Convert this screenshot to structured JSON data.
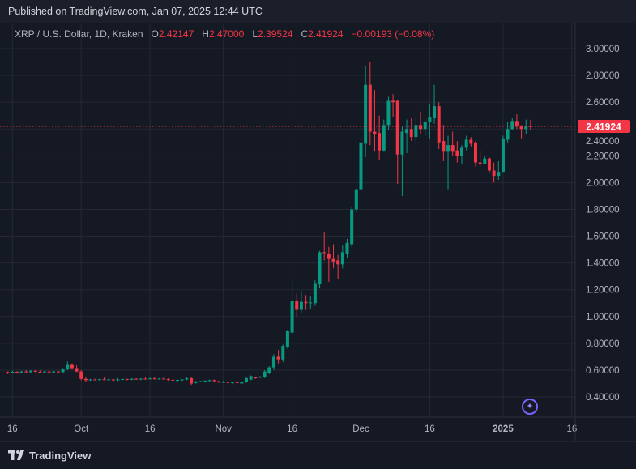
{
  "header": {
    "published": "Published on TradingView.com, Jan 07, 2025 12:44 UTC"
  },
  "legend": {
    "symbol": "XRP / U.S. Dollar, 1D, Kraken",
    "o_label": "O",
    "o": "2.42147",
    "h_label": "H",
    "h": "2.47000",
    "l_label": "L",
    "l": "2.39524",
    "c_label": "C",
    "c": "2.41924",
    "change": "−0.00193 (−0.08%)"
  },
  "footer": {
    "brand": "TradingView"
  },
  "colors": {
    "up": "#089981",
    "down": "#f23645",
    "grid": "#242935",
    "bg": "#151924",
    "text": "#b2b5be",
    "accent": "#7b61ff"
  },
  "chart_data": {
    "type": "candlestick",
    "title": "XRP / U.S. Dollar, 1D, Kraken",
    "x_unit": "days since 2024-09-14",
    "ylim": [
      0.3,
      3.05
    ],
    "y_ticks": [
      "3.00000",
      "2.80000",
      "2.60000",
      "2.40000",
      "2.20000",
      "2.00000",
      "1.80000",
      "1.60000",
      "1.40000",
      "1.20000",
      "1.00000",
      "0.80000",
      "0.60000",
      "0.40000"
    ],
    "x_ticks": [
      {
        "label": "16",
        "day": 2
      },
      {
        "label": "Oct",
        "day": 17
      },
      {
        "label": "16",
        "day": 32
      },
      {
        "label": "Nov",
        "day": 48
      },
      {
        "label": "16",
        "day": 63
      },
      {
        "label": "Dec",
        "day": 78
      },
      {
        "label": "16",
        "day": 93
      },
      {
        "label": "2025",
        "day": 109
      },
      {
        "label": "16",
        "day": 124
      }
    ],
    "last_price": 2.41924,
    "last_price_label": "2.41924",
    "first_day": 1,
    "ohlc": [
      [
        0.585,
        0.59,
        0.57,
        0.578
      ],
      [
        0.578,
        0.595,
        0.575,
        0.588
      ],
      [
        0.588,
        0.592,
        0.575,
        0.582
      ],
      [
        0.582,
        0.595,
        0.578,
        0.59
      ],
      [
        0.59,
        0.6,
        0.58,
        0.585
      ],
      [
        0.585,
        0.6,
        0.58,
        0.595
      ],
      [
        0.595,
        0.6,
        0.585,
        0.588
      ],
      [
        0.588,
        0.598,
        0.58,
        0.584
      ],
      [
        0.584,
        0.595,
        0.58,
        0.59
      ],
      [
        0.59,
        0.595,
        0.58,
        0.583
      ],
      [
        0.583,
        0.595,
        0.58,
        0.59
      ],
      [
        0.59,
        0.595,
        0.58,
        0.585
      ],
      [
        0.585,
        0.615,
        0.58,
        0.61
      ],
      [
        0.61,
        0.665,
        0.6,
        0.645
      ],
      [
        0.645,
        0.65,
        0.61,
        0.615
      ],
      [
        0.615,
        0.635,
        0.585,
        0.59
      ],
      [
        0.59,
        0.6,
        0.525,
        0.535
      ],
      [
        0.535,
        0.545,
        0.515,
        0.525
      ],
      [
        0.525,
        0.535,
        0.52,
        0.53
      ],
      [
        0.53,
        0.535,
        0.525,
        0.528
      ],
      [
        0.528,
        0.535,
        0.522,
        0.532
      ],
      [
        0.532,
        0.545,
        0.525,
        0.528
      ],
      [
        0.528,
        0.535,
        0.52,
        0.531
      ],
      [
        0.531,
        0.535,
        0.515,
        0.524
      ],
      [
        0.524,
        0.54,
        0.52,
        0.53
      ],
      [
        0.53,
        0.535,
        0.525,
        0.533
      ],
      [
        0.533,
        0.536,
        0.525,
        0.528
      ],
      [
        0.528,
        0.54,
        0.525,
        0.535
      ],
      [
        0.535,
        0.54,
        0.53,
        0.531
      ],
      [
        0.531,
        0.54,
        0.525,
        0.536
      ],
      [
        0.536,
        0.55,
        0.53,
        0.534
      ],
      [
        0.534,
        0.545,
        0.53,
        0.538
      ],
      [
        0.538,
        0.545,
        0.53,
        0.535
      ],
      [
        0.535,
        0.54,
        0.53,
        0.537
      ],
      [
        0.537,
        0.545,
        0.53,
        0.533
      ],
      [
        0.533,
        0.54,
        0.52,
        0.528
      ],
      [
        0.528,
        0.535,
        0.52,
        0.522
      ],
      [
        0.522,
        0.53,
        0.515,
        0.527
      ],
      [
        0.527,
        0.533,
        0.52,
        0.53
      ],
      [
        0.53,
        0.545,
        0.525,
        0.538
      ],
      [
        0.54,
        0.545,
        0.49,
        0.5
      ],
      [
        0.505,
        0.52,
        0.5,
        0.515
      ],
      [
        0.515,
        0.52,
        0.51,
        0.517
      ],
      [
        0.517,
        0.525,
        0.51,
        0.52
      ],
      [
        0.52,
        0.53,
        0.515,
        0.525
      ],
      [
        0.525,
        0.53,
        0.515,
        0.518
      ],
      [
        0.518,
        0.52,
        0.505,
        0.51
      ],
      [
        0.51,
        0.52,
        0.505,
        0.512
      ],
      [
        0.512,
        0.515,
        0.5,
        0.505
      ],
      [
        0.505,
        0.515,
        0.495,
        0.51
      ],
      [
        0.51,
        0.52,
        0.5,
        0.508
      ],
      [
        0.5,
        0.515,
        0.5,
        0.515
      ],
      [
        0.51,
        0.545,
        0.505,
        0.54
      ],
      [
        0.53,
        0.56,
        0.525,
        0.555
      ],
      [
        0.545,
        0.55,
        0.535,
        0.54
      ],
      [
        0.55,
        0.555,
        0.54,
        0.55
      ],
      [
        0.55,
        0.6,
        0.54,
        0.59
      ],
      [
        0.58,
        0.63,
        0.57,
        0.62
      ],
      [
        0.62,
        0.72,
        0.6,
        0.7
      ],
      [
        0.7,
        0.75,
        0.65,
        0.68
      ],
      [
        0.68,
        0.79,
        0.66,
        0.78
      ],
      [
        0.77,
        0.9,
        0.76,
        0.89
      ],
      [
        0.88,
        1.28,
        0.87,
        1.12
      ],
      [
        1.12,
        1.17,
        1.0,
        1.05
      ],
      [
        1.05,
        1.19,
        1.03,
        1.11
      ],
      [
        1.11,
        1.16,
        1.05,
        1.1
      ],
      [
        1.1,
        1.15,
        1.06,
        1.105
      ],
      [
        1.1,
        1.27,
        1.08,
        1.25
      ],
      [
        1.24,
        1.49,
        1.21,
        1.48
      ],
      [
        1.48,
        1.63,
        1.42,
        1.475
      ],
      [
        1.47,
        1.52,
        1.26,
        1.43
      ],
      [
        1.43,
        1.54,
        1.36,
        1.41
      ],
      [
        1.42,
        1.46,
        1.28,
        1.39
      ],
      [
        1.39,
        1.53,
        1.36,
        1.48
      ],
      [
        1.47,
        1.58,
        1.44,
        1.55
      ],
      [
        1.54,
        1.82,
        1.52,
        1.8
      ],
      [
        1.8,
        1.96,
        1.78,
        1.95
      ],
      [
        1.95,
        2.34,
        1.9,
        2.3
      ],
      [
        2.29,
        2.87,
        2.19,
        2.73
      ],
      [
        2.73,
        2.9,
        2.28,
        2.38
      ],
      [
        2.38,
        2.69,
        2.23,
        2.36
      ],
      [
        2.37,
        2.5,
        2.17,
        2.24
      ],
      [
        2.24,
        2.47,
        2.23,
        2.43
      ],
      [
        2.43,
        2.64,
        2.39,
        2.61
      ],
      [
        2.61,
        2.66,
        2.49,
        2.6
      ],
      [
        2.61,
        2.62,
        1.99,
        2.21
      ],
      [
        2.21,
        2.42,
        1.9,
        2.38
      ],
      [
        2.37,
        2.47,
        2.22,
        2.4
      ],
      [
        2.4,
        2.48,
        2.31,
        2.34
      ],
      [
        2.34,
        2.48,
        2.28,
        2.43
      ],
      [
        2.43,
        2.53,
        2.36,
        2.4
      ],
      [
        2.4,
        2.47,
        2.35,
        2.45
      ],
      [
        2.45,
        2.59,
        2.33,
        2.49
      ],
      [
        2.48,
        2.73,
        2.44,
        2.57
      ],
      [
        2.57,
        2.6,
        2.25,
        2.3
      ],
      [
        2.31,
        2.43,
        2.16,
        2.23
      ],
      [
        2.23,
        2.35,
        1.95,
        2.28
      ],
      [
        2.28,
        2.38,
        2.2,
        2.23
      ],
      [
        2.24,
        2.31,
        2.15,
        2.2
      ],
      [
        2.2,
        2.28,
        2.14,
        2.26
      ],
      [
        2.26,
        2.35,
        2.24,
        2.32
      ],
      [
        2.32,
        2.34,
        2.27,
        2.29
      ],
      [
        2.3,
        2.31,
        2.12,
        2.15
      ],
      [
        2.15,
        2.24,
        2.12,
        2.14
      ],
      [
        2.14,
        2.2,
        2.14,
        2.18
      ],
      [
        2.18,
        2.19,
        2.07,
        2.09
      ],
      [
        2.09,
        2.15,
        2.0,
        2.05
      ],
      [
        2.05,
        2.16,
        2.02,
        2.08
      ],
      [
        2.08,
        2.35,
        2.08,
        2.33
      ],
      [
        2.32,
        2.45,
        2.3,
        2.4
      ],
      [
        2.4,
        2.48,
        2.39,
        2.46
      ],
      [
        2.46,
        2.51,
        2.4,
        2.42
      ],
      [
        2.42,
        2.43,
        2.33,
        2.4
      ],
      [
        2.4,
        2.47,
        2.36,
        2.42
      ],
      [
        2.42147,
        2.47,
        2.39524,
        2.41924
      ]
    ]
  }
}
